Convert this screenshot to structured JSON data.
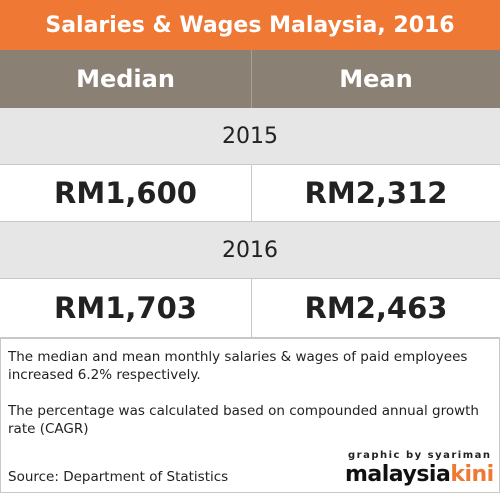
{
  "header": {
    "title": "Salaries & Wages Malaysia, 2016"
  },
  "table": {
    "columns": [
      "Median",
      "Mean"
    ],
    "rows": [
      {
        "year": "2015",
        "values": [
          "RM1,600",
          "RM2,312"
        ]
      },
      {
        "year": "2016",
        "values": [
          "RM1,703",
          "RM2,463"
        ]
      }
    ]
  },
  "notes": [
    "The median and mean monthly salaries & wages of paid employees increased 6.2% respectively.",
    "The percentage was calculated based on compounded annual growth rate (CAGR)"
  ],
  "source": "Source: Department of Statistics",
  "credit": {
    "byline": "graphic by syariman",
    "brand_left": "malaysia",
    "brand_right": "kini"
  }
}
